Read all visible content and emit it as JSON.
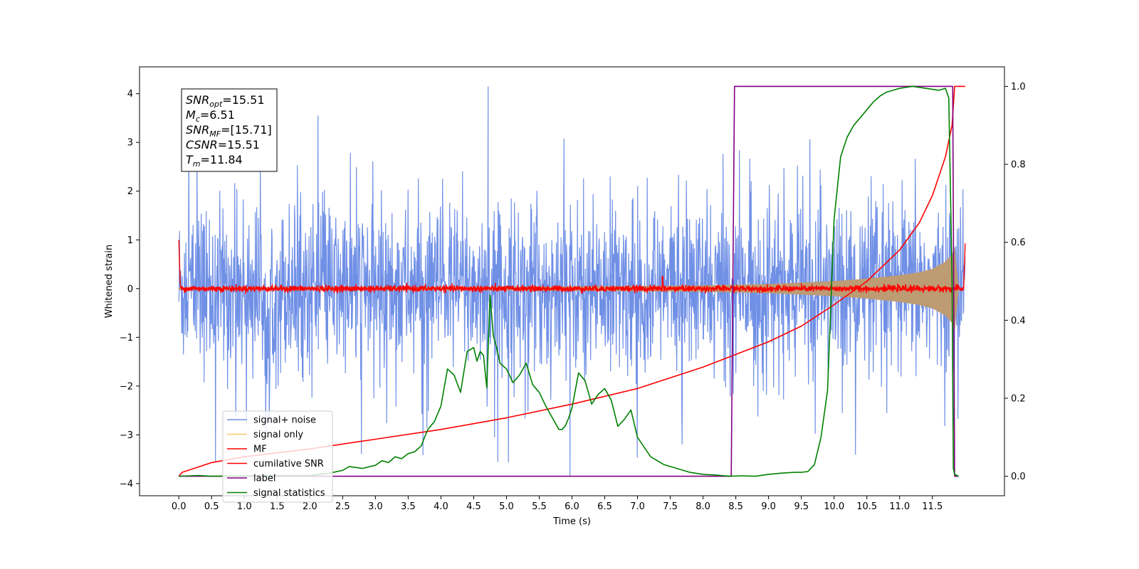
{
  "chart_data": {
    "type": "line",
    "xlabel": "Time (s)",
    "ylabel": "Whitened strain",
    "xlim": [
      -0.6,
      12.6
    ],
    "ylim": [
      -4.25,
      4.55
    ],
    "y2lim": [
      -0.05,
      1.05
    ],
    "x_ticks": [
      0.0,
      0.5,
      1.0,
      1.5,
      2.0,
      2.5,
      3.0,
      3.5,
      4.0,
      4.5,
      5.0,
      5.5,
      6.0,
      6.5,
      7.0,
      7.5,
      8.0,
      8.5,
      9.0,
      9.5,
      10.0,
      10.5,
      11.0,
      11.5
    ],
    "x_tick_labels": [
      "0.0",
      "0.5",
      "1.0",
      "1.5",
      "2.0",
      "2.5",
      "3.0",
      "3.5",
      "4.0",
      "4.5",
      "5.0",
      "5.5",
      "6.0",
      "6.5",
      "7.0",
      "7.5",
      "8.0",
      "8.5",
      "9.0",
      "9.5",
      "10.0",
      "10.5",
      "11.0",
      "11.5"
    ],
    "y_ticks": [
      -4,
      -3,
      -2,
      -1,
      0,
      1,
      2,
      3,
      4
    ],
    "y_tick_labels": [
      "−4",
      "−3",
      "−2",
      "−1",
      "0",
      "1",
      "2",
      "3",
      "4"
    ],
    "y2_ticks": [
      0.0,
      0.2,
      0.4,
      0.6,
      0.8,
      1.0
    ],
    "y2_tick_labels": [
      "0.0",
      "0.2",
      "0.4",
      "0.6",
      "0.8",
      "1.0"
    ],
    "grid": false,
    "legend_position": "lower-left",
    "annotation": [
      {
        "main": "SNR",
        "sub": "opt",
        "rest": "=15.51"
      },
      {
        "main": "M",
        "sub": "c",
        "rest": "=6.51"
      },
      {
        "main": "SNR",
        "sub": "MF",
        "rest": "=[15.71]"
      },
      {
        "main": "CSNR",
        "sub": "",
        "rest": "=15.51"
      },
      {
        "main": "T",
        "sub": "m",
        "rest": "=11.84"
      }
    ],
    "series": [
      {
        "name": "signal+ noise",
        "axis": "left",
        "color": "#7090e6",
        "kind": "noise_band",
        "x_range": [
          0.0,
          12.0
        ],
        "std": 0.85,
        "peak_max": 4.15,
        "peak_min": -3.85
      },
      {
        "name": "signal only",
        "axis": "left",
        "color": "#f5c869",
        "overlap_color": "#bd9b73",
        "kind": "chirp_envelope",
        "x": [
          0.0,
          2.0,
          4.0,
          6.0,
          8.0,
          9.0,
          10.0,
          10.5,
          11.0,
          11.3,
          11.5,
          11.7,
          11.8,
          11.84,
          11.9
        ],
        "amplitude": [
          0.02,
          0.025,
          0.03,
          0.04,
          0.06,
          0.09,
          0.15,
          0.2,
          0.27,
          0.33,
          0.4,
          0.55,
          0.7,
          0.85,
          0.0
        ]
      },
      {
        "name": "MF",
        "axis": "left",
        "color": "#ff0000",
        "kind": "mf_trace",
        "x_range": [
          0.0,
          12.0
        ],
        "level": 0.0,
        "jitter": 0.06,
        "start_value": 1.0,
        "end_value": 0.93,
        "spikes": [
          [
            7.38,
            0.25
          ]
        ]
      },
      {
        "name": "cumilative SNR",
        "axis": "right",
        "color": "#ff0000",
        "x": [
          0.0,
          0.05,
          0.5,
          1.0,
          2.0,
          3.0,
          4.0,
          5.0,
          6.0,
          7.0,
          8.0,
          9.0,
          9.5,
          10.0,
          10.5,
          11.0,
          11.3,
          11.5,
          11.7,
          11.8,
          11.84,
          12.0
        ],
        "values": [
          0.0,
          0.01,
          0.035,
          0.05,
          0.07,
          0.095,
          0.12,
          0.15,
          0.185,
          0.225,
          0.28,
          0.345,
          0.385,
          0.44,
          0.5,
          0.58,
          0.65,
          0.72,
          0.82,
          0.9,
          1.0,
          1.0
        ]
      },
      {
        "name": "label",
        "axis": "right",
        "color": "#800080",
        "x": [
          0.0,
          8.43,
          8.48,
          11.81,
          11.84,
          11.9
        ],
        "values": [
          0.0,
          0.0,
          1.0,
          1.0,
          0.0,
          0.0
        ]
      },
      {
        "name": "signal statistics",
        "axis": "right",
        "color": "#008000",
        "x": [
          0.0,
          0.3,
          0.5,
          1.0,
          1.5,
          2.0,
          2.3,
          2.5,
          2.6,
          2.8,
          3.0,
          3.1,
          3.2,
          3.3,
          3.4,
          3.5,
          3.6,
          3.7,
          3.75,
          3.8,
          3.9,
          4.0,
          4.1,
          4.2,
          4.3,
          4.4,
          4.5,
          4.55,
          4.6,
          4.65,
          4.7,
          4.75,
          4.8,
          4.85,
          4.9,
          5.0,
          5.1,
          5.2,
          5.3,
          5.4,
          5.5,
          5.6,
          5.7,
          5.8,
          5.85,
          5.9,
          5.95,
          6.0,
          6.1,
          6.2,
          6.3,
          6.4,
          6.5,
          6.6,
          6.7,
          6.8,
          6.9,
          7.0,
          7.2,
          7.4,
          7.6,
          7.8,
          8.0,
          8.2,
          8.4,
          8.6,
          8.8,
          9.0,
          9.2,
          9.4,
          9.5,
          9.6,
          9.7,
          9.8,
          9.9,
          10.0,
          10.1,
          10.2,
          10.3,
          10.4,
          10.5,
          10.6,
          10.7,
          10.8,
          10.9,
          11.0,
          11.2,
          11.4,
          11.6,
          11.7,
          11.75,
          11.8,
          11.82,
          11.84,
          11.9
        ],
        "values": [
          0.0,
          0.002,
          0.0,
          0.001,
          0.002,
          0.002,
          0.008,
          0.015,
          0.025,
          0.02,
          0.028,
          0.04,
          0.035,
          0.05,
          0.045,
          0.058,
          0.063,
          0.078,
          0.1,
          0.12,
          0.14,
          0.18,
          0.275,
          0.26,
          0.215,
          0.32,
          0.33,
          0.295,
          0.32,
          0.31,
          0.227,
          0.465,
          0.36,
          0.33,
          0.29,
          0.275,
          0.24,
          0.26,
          0.29,
          0.235,
          0.215,
          0.18,
          0.15,
          0.12,
          0.12,
          0.13,
          0.15,
          0.175,
          0.265,
          0.245,
          0.185,
          0.21,
          0.225,
          0.195,
          0.128,
          0.146,
          0.17,
          0.1,
          0.05,
          0.03,
          0.02,
          0.01,
          0.005,
          0.003,
          0.0,
          0.001,
          0.0,
          0.005,
          0.008,
          0.01,
          0.01,
          0.012,
          0.03,
          0.1,
          0.22,
          0.66,
          0.82,
          0.87,
          0.9,
          0.92,
          0.94,
          0.96,
          0.975,
          0.985,
          0.99,
          0.995,
          1.0,
          0.995,
          0.99,
          0.995,
          0.97,
          0.5,
          0.02,
          0.005,
          0.0
        ]
      }
    ]
  }
}
